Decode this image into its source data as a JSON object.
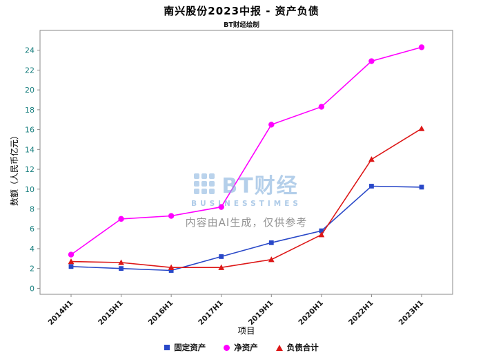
{
  "chart_data": {
    "type": "line",
    "title": "南兴股份2023中报 - 资产负债",
    "subtitle": "BT财经绘制",
    "xlabel": "项目",
    "ylabel": "数额（人民币亿元）",
    "ylim": [
      0,
      24
    ],
    "ytick_step": 2,
    "grid": false,
    "legend_position": "bottom",
    "y_tick_color": "#177e7e",
    "axis_color": "#8a8a8a",
    "categories": [
      "2014H1",
      "2015H1",
      "2016H1",
      "2017H1",
      "2019H1",
      "2020H1",
      "2022H1",
      "2023H1"
    ],
    "series": [
      {
        "name": "固定资产",
        "marker": "square",
        "color": "#2948c8",
        "values": [
          2.2,
          2.0,
          1.8,
          3.2,
          4.6,
          5.8,
          10.3,
          10.2
        ]
      },
      {
        "name": "净资产",
        "marker": "circle",
        "color": "#ff00ff",
        "values": [
          3.4,
          7.0,
          7.3,
          8.2,
          16.5,
          18.3,
          22.9,
          24.3
        ]
      },
      {
        "name": "负债合计",
        "marker": "triangle",
        "color": "#dd1717",
        "values": [
          2.7,
          2.6,
          2.1,
          2.1,
          2.9,
          5.4,
          13.0,
          16.1
        ]
      }
    ]
  },
  "watermark": {
    "brand": "BT财经",
    "brand_sub": "BUSINESSTIMES",
    "disclaimer": "内容由AI生成，仅供参考"
  }
}
